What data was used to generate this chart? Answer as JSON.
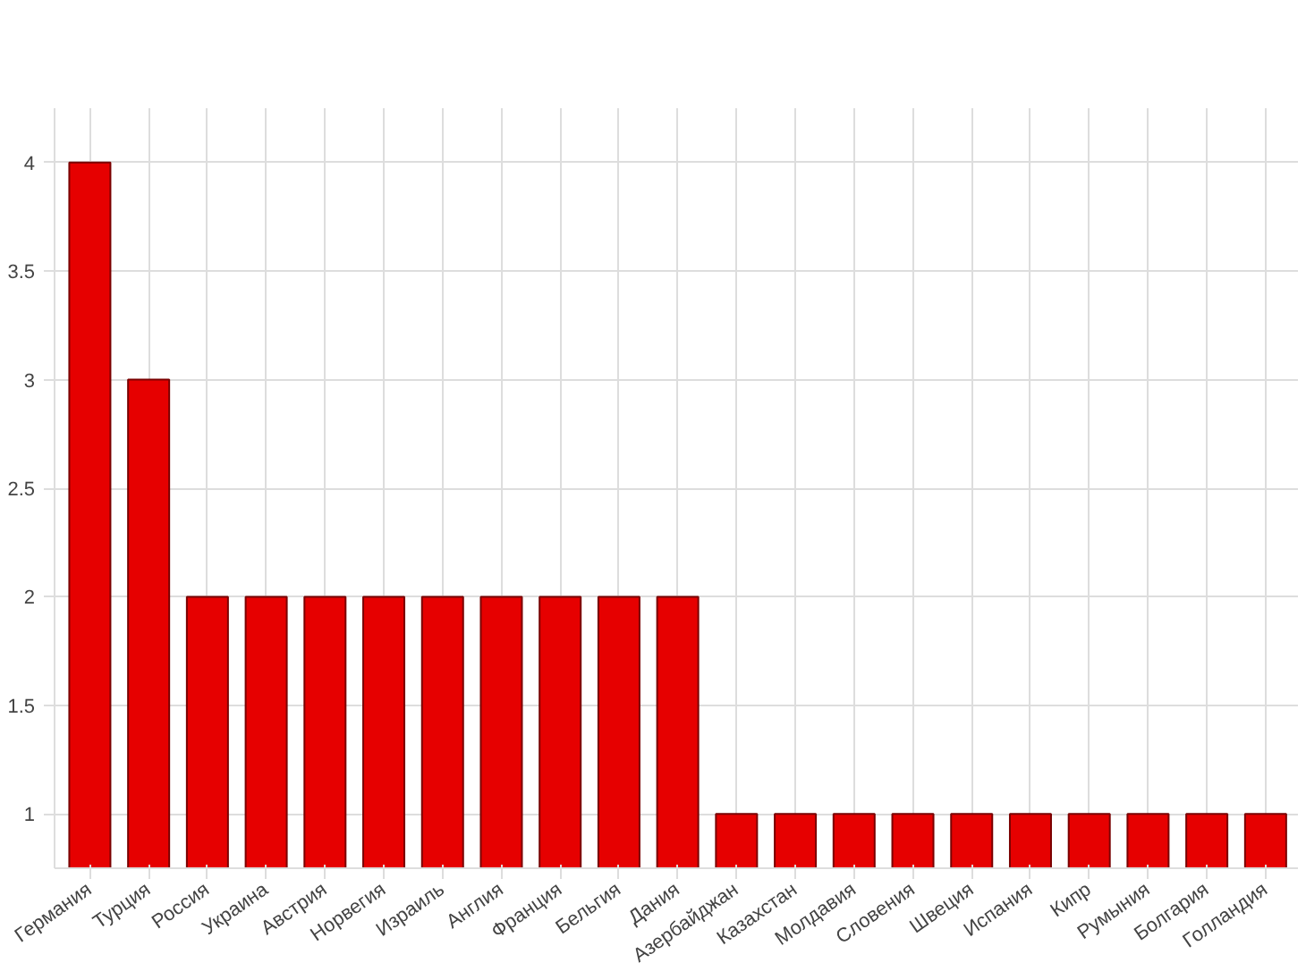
{
  "chart_data": {
    "type": "bar",
    "categories": [
      "Германия",
      "Турция",
      "Россия",
      "Украина",
      "Австрия",
      "Норвегия",
      "Израиль",
      "Англия",
      "Франция",
      "Бельгия",
      "Дания",
      "Азербайджан",
      "Казахстан",
      "Молдавия",
      "Словения",
      "Швеция",
      "Испания",
      "Кипр",
      "Румыния",
      "Болгария",
      "Голландия"
    ],
    "values": [
      4,
      3,
      2,
      2,
      2,
      2,
      2,
      2,
      2,
      2,
      2,
      1,
      1,
      1,
      1,
      1,
      1,
      1,
      1,
      1,
      1
    ],
    "color": "#e60000",
    "ylim": [
      0.75,
      4.25
    ],
    "yticks": [
      1,
      1.5,
      2,
      2.5,
      3,
      3.5,
      4
    ],
    "grid": true
  }
}
